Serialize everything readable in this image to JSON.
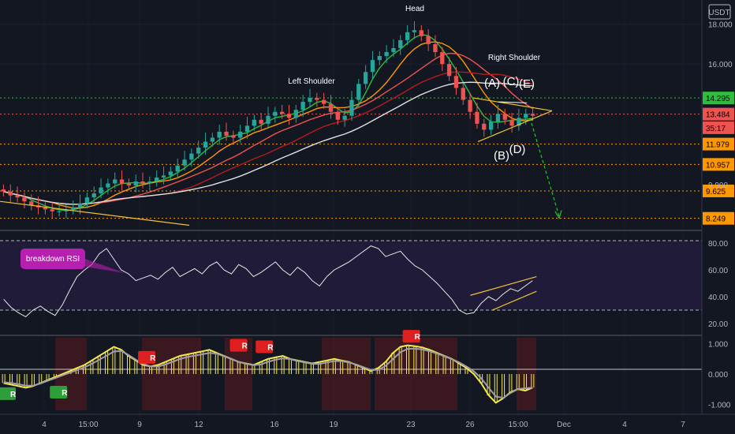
{
  "chart_data": {
    "type": "candlestick",
    "currency_label": "USDT",
    "x_ticks": [
      "4",
      "15:00",
      "9",
      "12",
      "16",
      "19",
      "23",
      "26",
      "15:00",
      "Dec",
      "4",
      "7"
    ],
    "price_ticks": [
      18.0,
      16.0
    ],
    "price_range": [
      7.8,
      18.9
    ],
    "price_levels": [
      {
        "value": 14.295,
        "label": "14.295",
        "color": "#2ebd3d",
        "line": "dotted-green"
      },
      {
        "value": 13.484,
        "label": "13.484",
        "color": "#ef5350",
        "line": "dotted-red"
      },
      {
        "value": 12.8,
        "label": "35:17",
        "color": "#ef5350",
        "line": "none"
      },
      {
        "value": 11.979,
        "label": "11.979",
        "color": "#ff9800",
        "line": "dotted-orange"
      },
      {
        "value": 10.957,
        "label": "10.957",
        "color": "#ff9800",
        "line": "dotted-orange"
      },
      {
        "value": 9.625,
        "label": "9.625",
        "color": "#ff9800",
        "line": "dotted-orange"
      },
      {
        "value": 8.249,
        "label": "8.249",
        "color": "#ff9800",
        "line": "dotted-orange"
      }
    ],
    "overlapped_tick_label": "9.900",
    "annotations": {
      "head": "Head",
      "left_shoulder": "Left Shoulder",
      "right_shoulder": "Right Shoulder",
      "waves": [
        "(A)",
        "(B)",
        "(C)",
        "(D)",
        "(E)"
      ]
    },
    "close_series": [
      9.6,
      9.4,
      9.3,
      9.1,
      8.9,
      8.8,
      8.7,
      8.6,
      8.6,
      8.7,
      8.8,
      9.0,
      9.3,
      9.5,
      9.8,
      10.0,
      10.2,
      10.0,
      9.9,
      10.1,
      10.0,
      10.1,
      10.3,
      10.4,
      10.6,
      10.9,
      11.2,
      11.5,
      11.8,
      12.1,
      12.3,
      12.6,
      12.4,
      12.3,
      12.6,
      12.9,
      13.2,
      13.0,
      13.4,
      13.6,
      13.5,
      13.3,
      13.7,
      14.1,
      14.3,
      14.2,
      14.0,
      13.6,
      13.2,
      13.4,
      14.2,
      15.0,
      15.6,
      16.2,
      16.4,
      16.6,
      16.8,
      17.2,
      17.6,
      17.7,
      17.4,
      17.0,
      16.6,
      16.0,
      15.4,
      14.8,
      14.2,
      13.6,
      13.0,
      12.7,
      13.1,
      13.5,
      13.2,
      12.9,
      13.3,
      13.5,
      13.4
    ],
    "rsi": {
      "label": "breakdown RSI",
      "ticks": [
        80.0,
        60.0,
        40.0,
        20.0
      ],
      "tick_labels": [
        "80.00",
        "60.00",
        "40.00",
        "20.00"
      ],
      "range": [
        14,
        86
      ],
      "upper_band": 80,
      "lower_band": 30,
      "values": [
        38,
        32,
        28,
        25,
        30,
        33,
        29,
        26,
        34,
        45,
        55,
        60,
        64,
        72,
        76,
        68,
        60,
        57,
        52,
        54,
        56,
        53,
        58,
        62,
        55,
        58,
        61,
        57,
        63,
        66,
        60,
        57,
        64,
        61,
        55,
        58,
        62,
        66,
        60,
        56,
        62,
        58,
        52,
        48,
        55,
        60,
        63,
        66,
        70,
        74,
        78,
        76,
        70,
        72,
        74,
        68,
        63,
        60,
        55,
        50,
        44,
        38,
        30,
        27,
        28,
        35,
        40,
        37,
        42,
        46,
        44,
        48,
        52
      ],
      "trend_lines": [
        [
          0.64,
          41,
          0.73,
          55
        ],
        [
          0.67,
          30,
          0.73,
          44
        ]
      ]
    },
    "oscillator": {
      "ticks": [
        1.0,
        0.0,
        -1.0
      ],
      "tick_labels": [
        "1.000",
        "0.000",
        "-1.000"
      ],
      "range": [
        -1.2,
        1.2
      ],
      "values": [
        -0.3,
        -0.35,
        -0.4,
        -0.45,
        -0.4,
        -0.3,
        -0.2,
        -0.1,
        0.0,
        0.1,
        0.2,
        0.3,
        0.45,
        0.6,
        0.75,
        0.9,
        0.8,
        0.6,
        0.45,
        0.3,
        0.25,
        0.3,
        0.4,
        0.5,
        0.6,
        0.65,
        0.7,
        0.75,
        0.8,
        0.7,
        0.6,
        0.5,
        0.4,
        0.35,
        0.3,
        0.4,
        0.5,
        0.55,
        0.6,
        0.5,
        0.45,
        0.4,
        0.35,
        0.4,
        0.45,
        0.5,
        0.45,
        0.4,
        0.3,
        0.2,
        0.1,
        0.2,
        0.4,
        0.7,
        0.9,
        0.95,
        0.92,
        0.88,
        0.8,
        0.7,
        0.6,
        0.5,
        0.35,
        0.2,
        0.0,
        -0.3,
        -0.7,
        -0.95,
        -0.8,
        -0.6,
        -0.5,
        -0.55,
        -0.45
      ],
      "signal_marks": [
        {
          "kind": "bear",
          "label": "R",
          "pos": 0.19,
          "value": 0.55
        },
        {
          "kind": "bear",
          "label": "R",
          "pos": 0.315,
          "value": 0.95
        },
        {
          "kind": "bear",
          "label": "R",
          "pos": 0.35,
          "value": 0.9
        },
        {
          "kind": "bear",
          "label": "R",
          "pos": 0.55,
          "value": 1.25
        },
        {
          "kind": "bull",
          "label": "R",
          "pos": 0.07,
          "value": -0.6
        },
        {
          "kind": "bull",
          "label": "R",
          "pos": 0.0,
          "value": -0.65
        }
      ]
    }
  }
}
